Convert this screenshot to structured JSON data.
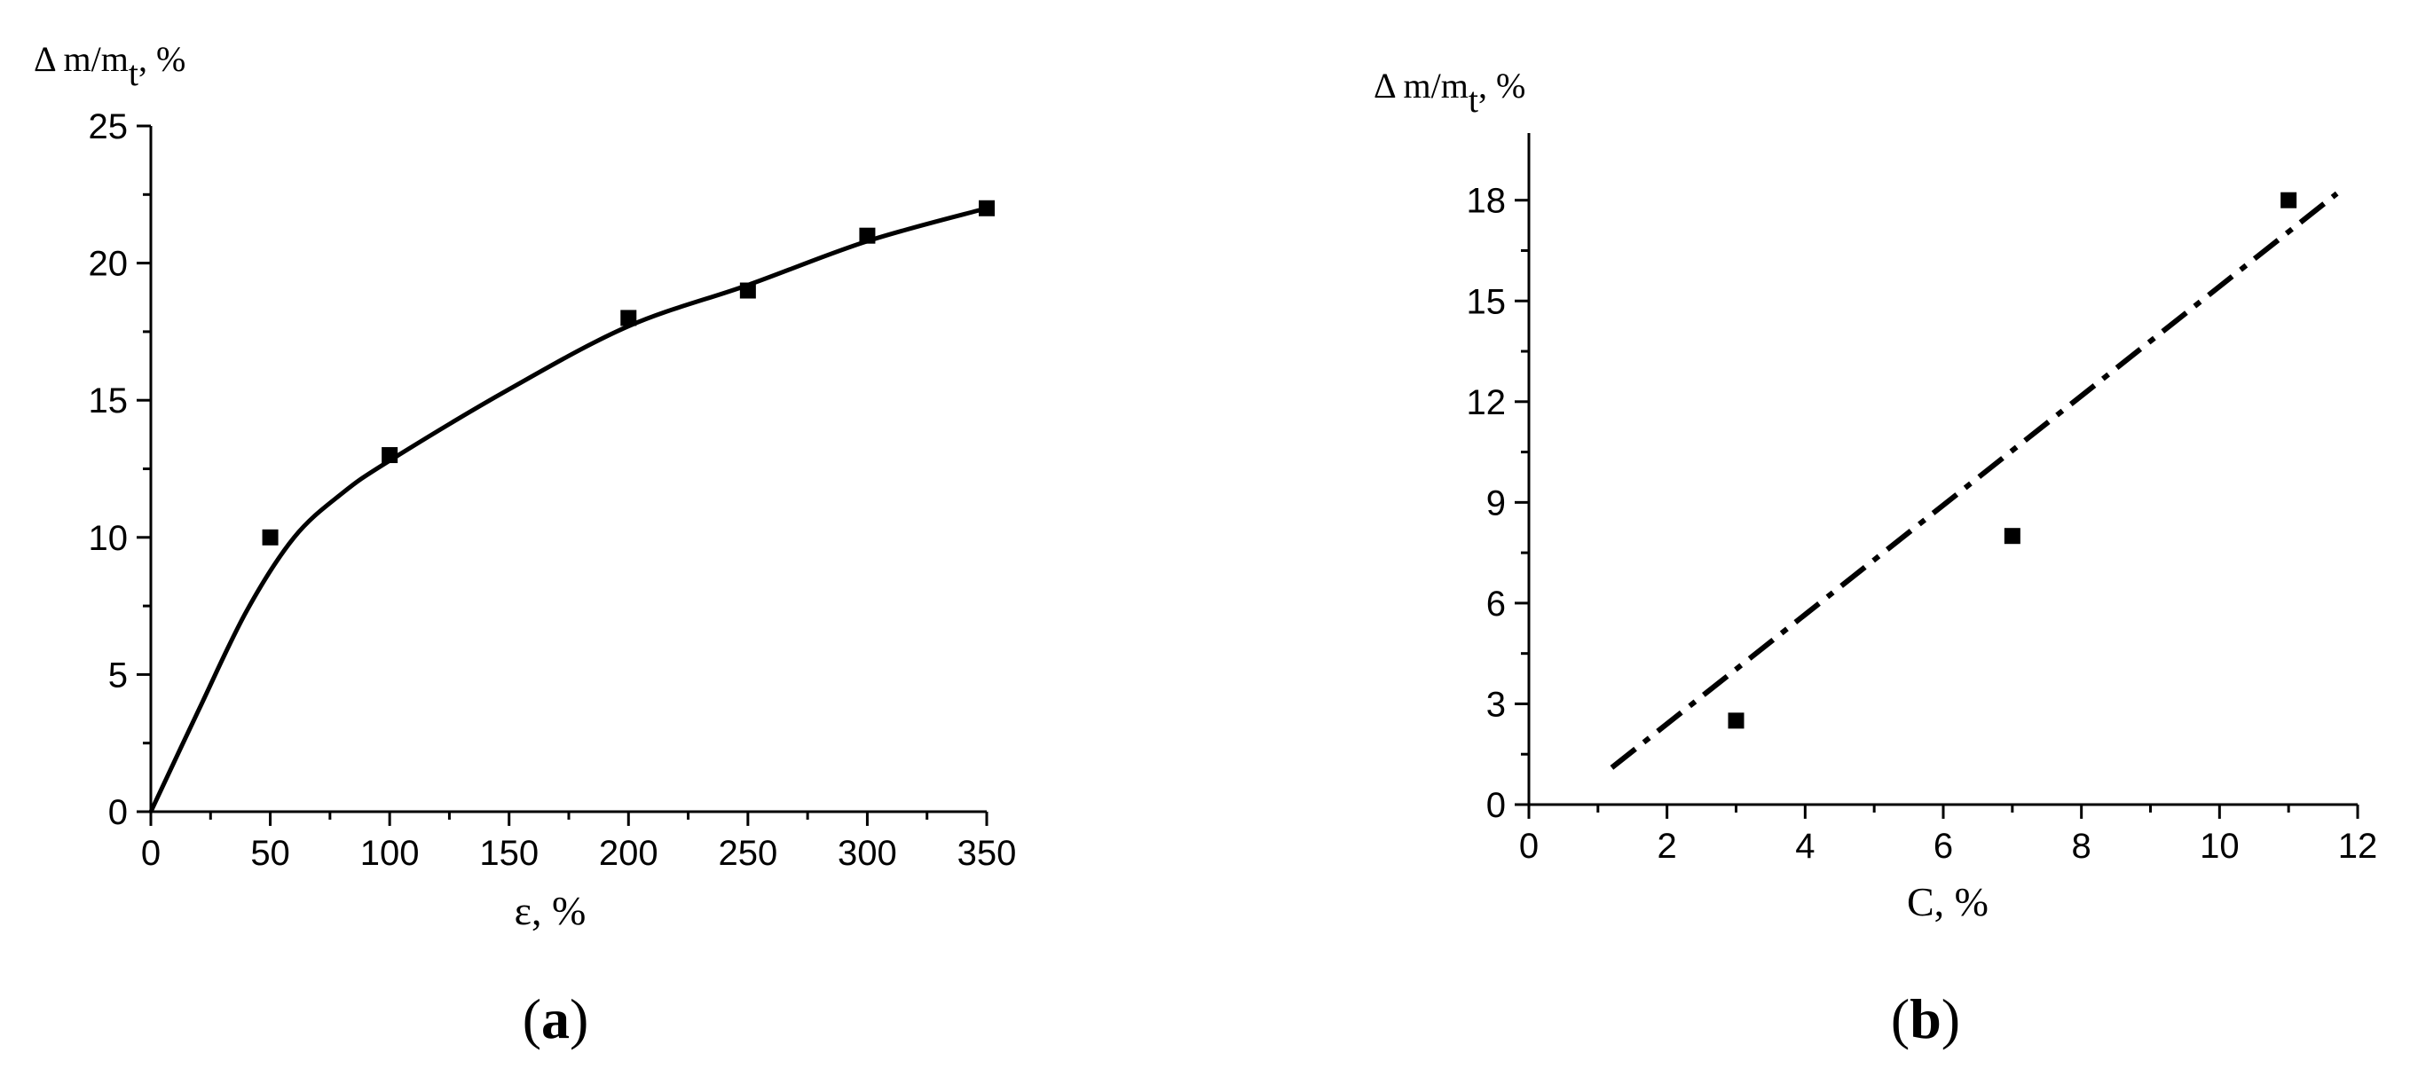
{
  "chart_data": [
    {
      "panel": "(a)",
      "panel_letter": "a",
      "type": "scatter",
      "ylabel_main": "Δ m/m",
      "ylabel_sub": "t",
      "ylabel_suffix": ", %",
      "xlabel": "ε, %",
      "xlim": [
        0,
        350
      ],
      "ylim": [
        0,
        25
      ],
      "x_ticks": [
        0,
        50,
        100,
        150,
        200,
        250,
        300,
        350
      ],
      "y_ticks": [
        0,
        5,
        10,
        15,
        20,
        25
      ],
      "series": [
        {
          "kind": "points",
          "x": [
            50,
            100,
            200,
            250,
            300,
            350
          ],
          "y": [
            10,
            13,
            18,
            19,
            21,
            22
          ]
        },
        {
          "kind": "fit-curve",
          "x": [
            0,
            20,
            40,
            60,
            80,
            100,
            150,
            200,
            250,
            300,
            350
          ],
          "y": [
            0,
            3.7,
            7.3,
            10.0,
            11.6,
            12.8,
            15.4,
            17.7,
            19.2,
            20.8,
            22.0
          ]
        }
      ]
    },
    {
      "panel": "(b)",
      "panel_letter": "b",
      "type": "scatter",
      "ylabel_main": "Δ m/m",
      "ylabel_sub": "t",
      "ylabel_suffix": ", %",
      "xlabel": "C, %",
      "xlim": [
        0,
        12
      ],
      "ylim": [
        0,
        20
      ],
      "x_ticks": [
        0,
        2,
        4,
        6,
        8,
        10,
        12
      ],
      "y_ticks": [
        0,
        3,
        6,
        9,
        12,
        15,
        18
      ],
      "series": [
        {
          "kind": "points",
          "x": [
            3,
            7,
            11
          ],
          "y": [
            2.5,
            8,
            18
          ]
        },
        {
          "kind": "fit-line",
          "x": [
            1.2,
            11.7
          ],
          "y": [
            1.1,
            18.2
          ]
        }
      ]
    }
  ]
}
